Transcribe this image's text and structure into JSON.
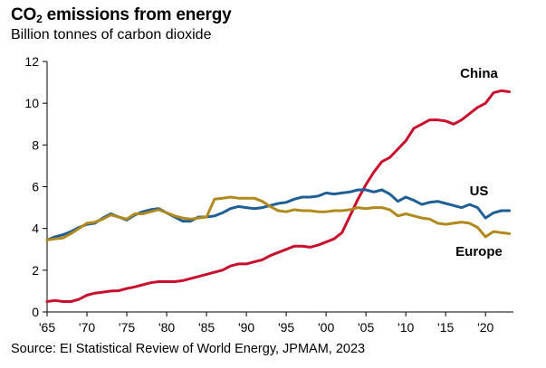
{
  "header": {
    "title_main": "CO",
    "title_sub": "2",
    "title_rest": " emissions from energy",
    "subtitle": "Billion tonnes of carbon dioxide"
  },
  "source": "Source: EI Statistical Review of World Energy, JPMAM, 2023",
  "chart_data": {
    "type": "line",
    "title": "CO2 emissions from energy",
    "subtitle": "Billion tonnes of carbon dioxide",
    "xlabel": "",
    "ylabel": "",
    "xlim": [
      1965,
      2023.5
    ],
    "ylim": [
      0,
      12
    ],
    "yticks": [
      0,
      2,
      4,
      6,
      8,
      10,
      12
    ],
    "xticks": [
      1965,
      1970,
      1975,
      1980,
      1985,
      1990,
      1995,
      2000,
      2005,
      2010,
      2015,
      2020
    ],
    "xtick_labels": [
      "'65",
      "'70",
      "'75",
      "'80",
      "'85",
      "'90",
      "'95",
      "'00",
      "'05",
      "'10",
      "'15",
      "'20"
    ],
    "grid": false,
    "x": [
      1965,
      1966,
      1967,
      1968,
      1969,
      1970,
      1971,
      1972,
      1973,
      1974,
      1975,
      1976,
      1977,
      1978,
      1979,
      1980,
      1981,
      1982,
      1983,
      1984,
      1985,
      1986,
      1987,
      1988,
      1989,
      1990,
      1991,
      1992,
      1993,
      1994,
      1995,
      1996,
      1997,
      1998,
      1999,
      2000,
      2001,
      2002,
      2003,
      2004,
      2005,
      2006,
      2007,
      2008,
      2009,
      2010,
      2011,
      2012,
      2013,
      2014,
      2015,
      2016,
      2017,
      2018,
      2019,
      2020,
      2021,
      2022,
      2023
    ],
    "series": [
      {
        "name": "China",
        "color": "#c8102e",
        "values": [
          0.5,
          0.55,
          0.5,
          0.5,
          0.6,
          0.8,
          0.9,
          0.95,
          1.0,
          1.02,
          1.12,
          1.2,
          1.3,
          1.4,
          1.45,
          1.45,
          1.45,
          1.5,
          1.6,
          1.7,
          1.8,
          1.9,
          2.0,
          2.2,
          2.3,
          2.3,
          2.4,
          2.5,
          2.7,
          2.85,
          3.0,
          3.15,
          3.15,
          3.1,
          3.2,
          3.35,
          3.5,
          3.8,
          4.6,
          5.4,
          6.1,
          6.7,
          7.2,
          7.4,
          7.8,
          8.2,
          8.8,
          9.0,
          9.2,
          9.2,
          9.15,
          9.0,
          9.2,
          9.5,
          9.8,
          10.0,
          10.5,
          10.6,
          10.55
        ]
      },
      {
        "name": "US",
        "color": "#1f5f96",
        "values": [
          3.45,
          3.6,
          3.7,
          3.85,
          4.05,
          4.2,
          4.25,
          4.5,
          4.7,
          4.55,
          4.4,
          4.65,
          4.8,
          4.9,
          4.95,
          4.75,
          4.55,
          4.35,
          4.35,
          4.55,
          4.55,
          4.6,
          4.75,
          4.95,
          5.05,
          5.0,
          4.95,
          5.0,
          5.1,
          5.2,
          5.25,
          5.4,
          5.5,
          5.5,
          5.55,
          5.7,
          5.65,
          5.7,
          5.75,
          5.85,
          5.85,
          5.75,
          5.85,
          5.65,
          5.3,
          5.5,
          5.35,
          5.15,
          5.25,
          5.3,
          5.2,
          5.1,
          5.0,
          5.15,
          5.0,
          4.5,
          4.75,
          4.85,
          4.85
        ]
      },
      {
        "name": "Europe",
        "color": "#b08a1e",
        "values": [
          3.45,
          3.5,
          3.55,
          3.75,
          4.0,
          4.25,
          4.3,
          4.45,
          4.65,
          4.55,
          4.45,
          4.7,
          4.7,
          4.8,
          4.9,
          4.75,
          4.6,
          4.5,
          4.45,
          4.5,
          4.55,
          5.4,
          5.45,
          5.5,
          5.45,
          5.45,
          5.45,
          5.3,
          5.05,
          4.85,
          4.8,
          4.9,
          4.85,
          4.85,
          4.8,
          4.8,
          4.85,
          4.85,
          4.9,
          5.0,
          4.95,
          5.0,
          5.0,
          4.9,
          4.6,
          4.7,
          4.6,
          4.5,
          4.45,
          4.25,
          4.2,
          4.25,
          4.3,
          4.25,
          4.05,
          3.6,
          3.85,
          3.8,
          3.75
        ]
      }
    ]
  }
}
